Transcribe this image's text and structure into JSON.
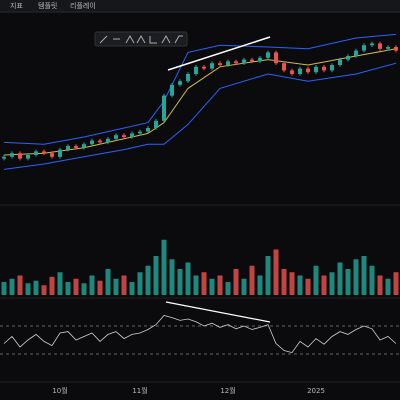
{
  "toolbar": {
    "items": [
      "지표",
      "템플릿",
      "리플레이"
    ]
  },
  "chart_data": [
    {
      "type": "candlestick",
      "ylim": [
        0,
        100
      ],
      "up_color": "#26a69a",
      "down_color": "#ef5350",
      "open": [
        23,
        24,
        26,
        23,
        25,
        27,
        26,
        24,
        28,
        30,
        29,
        31,
        33,
        32,
        34,
        36,
        35,
        37,
        38,
        40,
        44,
        58,
        64,
        66,
        70,
        74,
        73,
        76,
        75,
        77,
        76,
        78,
        77,
        79,
        82,
        76,
        72,
        70,
        73,
        71,
        74,
        72,
        75,
        78,
        80,
        83,
        86,
        87,
        84,
        85
      ],
      "high": [
        25,
        27,
        27,
        26,
        28,
        28,
        27,
        29,
        31,
        31,
        32,
        34,
        34,
        35,
        37,
        37,
        38,
        39,
        41,
        45,
        59,
        65,
        67,
        71,
        75,
        75,
        77,
        77,
        78,
        78,
        79,
        79,
        80,
        83,
        83,
        77,
        73,
        74,
        74,
        75,
        75,
        76,
        79,
        81,
        84,
        87,
        88,
        88,
        86,
        86
      ],
      "low": [
        22,
        23,
        22,
        22,
        24,
        25,
        23,
        23,
        27,
        28,
        28,
        30,
        31,
        31,
        33,
        34,
        34,
        36,
        37,
        39,
        43,
        57,
        63,
        65,
        69,
        72,
        72,
        74,
        74,
        75,
        75,
        76,
        76,
        78,
        75,
        71,
        69,
        69,
        70,
        70,
        71,
        71,
        74,
        77,
        79,
        82,
        85,
        83,
        83,
        82
      ],
      "close": [
        24,
        26,
        23,
        25,
        27,
        26,
        24,
        28,
        30,
        29,
        31,
        33,
        32,
        34,
        36,
        35,
        37,
        38,
        40,
        44,
        58,
        64,
        66,
        70,
        74,
        73,
        76,
        75,
        77,
        76,
        78,
        77,
        79,
        82,
        76,
        72,
        70,
        73,
        71,
        74,
        72,
        75,
        78,
        80,
        83,
        86,
        87,
        84,
        85,
        83
      ],
      "bands": {
        "x": [
          0,
          5,
          10,
          15,
          18,
          20,
          23,
          27,
          33,
          38,
          44,
          49
        ],
        "series": [
          {
            "color": "#2962ff",
            "values": [
              32,
              31,
              35,
              40,
              43,
              55,
              82,
              86,
              85,
              84,
              90,
              92
            ]
          },
          {
            "color": "#d4b84a",
            "values": [
              25,
              26,
              29,
              34,
              37,
              43,
              62,
              74,
              78,
              75,
              80,
              84
            ]
          },
          {
            "color": "#2962ff",
            "values": [
              17,
              20,
              24,
              28,
              31,
              31,
              42,
              62,
              70,
              66,
              70,
              76
            ]
          }
        ]
      },
      "x_labels": [
        {
          "index": 7,
          "label": "10월"
        },
        {
          "index": 17,
          "label": "11월"
        },
        {
          "index": 28,
          "label": "12월"
        },
        {
          "index": 39,
          "label": "2025"
        }
      ]
    },
    {
      "type": "bar",
      "ylim": [
        0,
        100
      ],
      "values": [
        20,
        25,
        30,
        18,
        22,
        15,
        28,
        35,
        20,
        25,
        18,
        30,
        22,
        40,
        25,
        30,
        20,
        35,
        45,
        60,
        85,
        55,
        40,
        50,
        30,
        35,
        25,
        30,
        20,
        40,
        25,
        45,
        30,
        60,
        70,
        40,
        35,
        30,
        25,
        45,
        30,
        35,
        50,
        40,
        55,
        60,
        45,
        30,
        25,
        35
      ]
    },
    {
      "type": "line",
      "ylim": [
        0,
        100
      ],
      "yticks": [
        30,
        70
      ],
      "color": "#d0d0d0",
      "values": [
        45,
        55,
        40,
        50,
        58,
        48,
        42,
        60,
        62,
        50,
        55,
        60,
        48,
        58,
        62,
        52,
        58,
        60,
        65,
        72,
        85,
        82,
        78,
        80,
        76,
        70,
        74,
        68,
        72,
        66,
        70,
        65,
        68,
        72,
        45,
        35,
        32,
        48,
        40,
        52,
        44,
        55,
        62,
        58,
        65,
        70,
        66,
        50,
        55,
        45
      ]
    }
  ]
}
